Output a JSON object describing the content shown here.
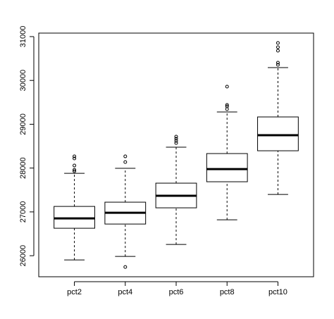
{
  "chart_data": {
    "type": "boxplot",
    "categories": [
      "pct2",
      "pct4",
      "pct6",
      "pct8",
      "pct10"
    ],
    "boxes": [
      {
        "min": 25904,
        "q1": 26627,
        "median": 26852,
        "q3": 27125,
        "max": 27881,
        "outliers": [
          27929,
          27961,
          28058,
          28219,
          28267
        ]
      },
      {
        "min": 25984,
        "q1": 26723,
        "median": 26981,
        "q3": 27222,
        "max": 27994,
        "outliers": [
          25743,
          28138,
          28267
        ]
      },
      {
        "min": 26257,
        "q1": 27093,
        "median": 27367,
        "q3": 27656,
        "max": 28476,
        "outliers": [
          28572,
          28621,
          28669,
          28717
        ]
      },
      {
        "min": 26820,
        "q1": 27688,
        "median": 27977,
        "q3": 28331,
        "max": 29280,
        "outliers": [
          29344,
          29408,
          29441,
          29859
        ]
      },
      {
        "min": 27399,
        "q1": 28395,
        "median": 28749,
        "q3": 29167,
        "max": 30293,
        "outliers": [
          30357,
          30405,
          30678,
          30759,
          30855
        ]
      }
    ],
    "color": "#000000",
    "ylim": [
      25520,
      31080
    ],
    "yticks": [
      26000,
      27000,
      28000,
      29000,
      30000,
      31000
    ]
  }
}
